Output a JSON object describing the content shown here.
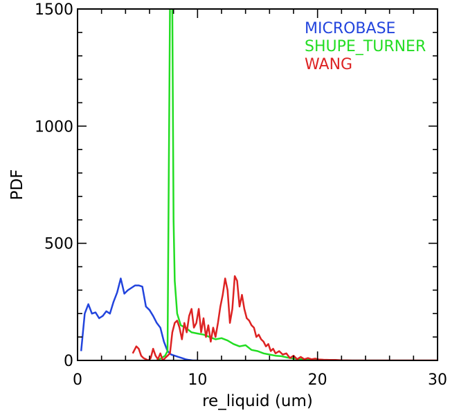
{
  "chart_data": {
    "type": "line",
    "xlabel": "re_liquid (um)",
    "ylabel": "PDF",
    "xlim": [
      0,
      30
    ],
    "ylim": [
      0,
      1500
    ],
    "x_ticks": [
      0,
      10,
      20,
      30
    ],
    "y_ticks": [
      0,
      500,
      1000,
      1500
    ],
    "legend_placement": "top-right",
    "grid": false,
    "series": [
      {
        "name": "MICROBASE",
        "color": "#2244dd",
        "x": [
          0.3,
          0.6,
          0.9,
          1.2,
          1.5,
          1.8,
          2.1,
          2.4,
          2.7,
          3.0,
          3.3,
          3.6,
          3.9,
          4.2,
          4.5,
          4.8,
          5.1,
          5.4,
          5.7,
          6.0,
          6.3,
          6.6,
          6.9,
          7.2,
          7.5,
          7.8,
          8.1,
          8.4,
          8.7,
          9.0,
          9.3,
          9.6,
          10.0
        ],
        "y": [
          40,
          200,
          240,
          200,
          205,
          180,
          190,
          210,
          200,
          250,
          290,
          350,
          285,
          300,
          310,
          320,
          320,
          315,
          230,
          215,
          190,
          160,
          140,
          80,
          40,
          25,
          20,
          15,
          10,
          5,
          2,
          0,
          0
        ]
      },
      {
        "name": "SHUPE_TURNER",
        "color": "#22dd22",
        "x": [
          6.6,
          7.0,
          7.3,
          7.5,
          7.7,
          7.8,
          7.9,
          8.0,
          8.1,
          8.3,
          8.6,
          9.0,
          9.5,
          10.0,
          10.5,
          11.0,
          11.5,
          12.0,
          12.5,
          13.0,
          13.5,
          14.0,
          14.5,
          15.0,
          15.5,
          16.0,
          16.5,
          17.0,
          17.5,
          18.0,
          18.5,
          19.0,
          19.5,
          20.0,
          20.5,
          21.0
        ],
        "y": [
          0,
          10,
          20,
          40,
          1500,
          1520,
          1500,
          600,
          340,
          200,
          150,
          140,
          120,
          115,
          110,
          100,
          90,
          95,
          85,
          70,
          60,
          65,
          45,
          40,
          30,
          25,
          20,
          18,
          12,
          8,
          6,
          5,
          4,
          3,
          2,
          0
        ]
      },
      {
        "name": "WANG",
        "color": "#dd2222",
        "x": [
          4.6,
          4.9,
          5.1,
          5.3,
          5.5,
          5.7,
          5.9,
          6.1,
          6.3,
          6.5,
          6.7,
          6.9,
          7.1,
          7.3,
          7.5,
          7.7,
          7.9,
          8.1,
          8.3,
          8.5,
          8.7,
          8.9,
          9.1,
          9.3,
          9.5,
          9.7,
          9.9,
          10.1,
          10.3,
          10.5,
          10.7,
          10.9,
          11.1,
          11.3,
          11.5,
          11.7,
          11.9,
          12.1,
          12.3,
          12.5,
          12.7,
          12.9,
          13.1,
          13.3,
          13.5,
          13.7,
          13.9,
          14.1,
          14.3,
          14.5,
          14.7,
          14.9,
          15.1,
          15.3,
          15.5,
          15.7,
          15.9,
          16.1,
          16.3,
          16.5,
          16.8,
          17.1,
          17.4,
          17.7,
          18.0,
          18.3,
          18.6,
          18.9,
          19.2,
          19.5,
          19.8,
          20.1,
          20.5,
          21.0,
          21.5,
          22.0,
          23.0,
          25.0,
          27.0,
          29.0,
          30.0
        ],
        "y": [
          30,
          60,
          50,
          20,
          10,
          5,
          0,
          10,
          50,
          20,
          5,
          30,
          0,
          10,
          20,
          30,
          120,
          160,
          170,
          140,
          90,
          160,
          120,
          190,
          220,
          140,
          160,
          220,
          120,
          180,
          100,
          150,
          80,
          140,
          100,
          160,
          230,
          280,
          350,
          300,
          160,
          220,
          360,
          340,
          230,
          280,
          220,
          180,
          170,
          150,
          140,
          100,
          110,
          90,
          80,
          60,
          70,
          40,
          50,
          30,
          40,
          25,
          30,
          10,
          20,
          5,
          15,
          5,
          10,
          5,
          8,
          4,
          3,
          2,
          2,
          1,
          0,
          0,
          0,
          0,
          0
        ]
      }
    ]
  }
}
